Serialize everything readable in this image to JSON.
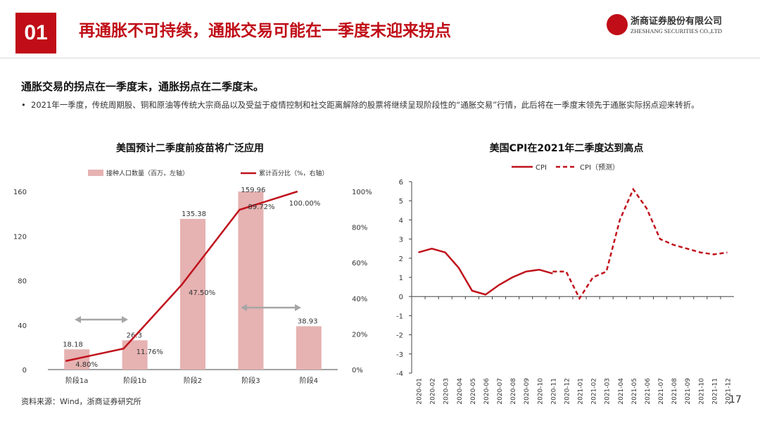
{
  "header": {
    "number": "01",
    "title": "再通胀不可持续，通胀交易可能在一季度末迎来拐点",
    "logo_cn": "浙商证券股份有限公司",
    "logo_en": "ZHESHANG SECURITIES CO.,LTD"
  },
  "subheading": "通胀交易的拐点在一季度末，通胀拐点在二季度末。",
  "bullet": {
    "marker": "•",
    "text": "2021年一季度，传统周期股、铜和原油等传统大宗商品以及受益于疫情控制和社交距离解除的股票将继续呈现阶段性的“通胀交易”行情，此后将在一季度末领先于通胀实际拐点迎来转折。"
  },
  "footer": {
    "source": "资料来源：Wind，浙商证券研究所",
    "page": "17"
  },
  "colors": {
    "accent": "#c00d17",
    "bar": "#e6b2b2",
    "line": "#c0121c",
    "arrow": "#a6a6a6"
  },
  "chart_data": [
    {
      "type": "bar",
      "title": "美国预计二季度前疫苗将广泛应用",
      "categories": [
        "阶段1a",
        "阶段1b",
        "阶段2",
        "阶段3",
        "阶段4"
      ],
      "series": [
        {
          "name": "接种人口数量（百万，左轴）",
          "type": "bar",
          "axis": "left",
          "values": [
            18.18,
            26.3,
            135.38,
            159.96,
            38.93
          ],
          "labels": [
            "18.18",
            "26.3",
            "135.38",
            "159.96",
            "38.93"
          ]
        },
        {
          "name": "累计百分比（%，右轴）",
          "type": "line",
          "axis": "right",
          "values": [
            4.8,
            11.76,
            47.5,
            89.72,
            100.0
          ],
          "labels": [
            "4.80%",
            "11.76%",
            "47.50%",
            "89.72%",
            "100.00%"
          ]
        }
      ],
      "ylim_left": [
        0,
        160
      ],
      "yticks_left": [
        "0",
        "40",
        "80",
        "120",
        "160"
      ],
      "ylim_right": [
        0,
        100
      ],
      "yticks_right": [
        "0%",
        "20%",
        "40%",
        "60%",
        "80%",
        "100%"
      ],
      "annotations": [
        "double-arrow over 阶段1a–阶段1b",
        "double-arrow over 阶段3–阶段4"
      ]
    },
    {
      "type": "line",
      "title": "美国CPI在2021年二季度达到高点",
      "x": [
        "2020-01",
        "2020-02",
        "2020-03",
        "2020-04",
        "2020-05",
        "2020-06",
        "2020-07",
        "2020-08",
        "2020-09",
        "2020-10",
        "2020-11",
        "2020-12",
        "2021-01",
        "2021-02",
        "2021-03",
        "2021-04",
        "2021-05",
        "2021-06",
        "2021-07",
        "2021-08",
        "2021-09",
        "2021-10",
        "2021-11",
        "2021-12"
      ],
      "series": [
        {
          "name": "CPI",
          "style": "solid",
          "values": [
            2.3,
            2.5,
            2.3,
            1.5,
            0.3,
            0.1,
            0.6,
            1.0,
            1.3,
            1.4,
            1.2,
            null,
            null,
            null,
            null,
            null,
            null,
            null,
            null,
            null,
            null,
            null,
            null,
            null
          ]
        },
        {
          "name": "CPI（预测）",
          "style": "dashed",
          "values": [
            null,
            null,
            null,
            null,
            null,
            null,
            null,
            null,
            null,
            null,
            1.3,
            1.3,
            -0.1,
            1.0,
            1.3,
            4.0,
            5.6,
            4.6,
            3.0,
            2.7,
            2.5,
            2.3,
            2.2,
            2.3
          ]
        }
      ],
      "ylim": [
        -4,
        6
      ],
      "yticks": [
        "6",
        "5",
        "4",
        "3",
        "2",
        "1",
        "0",
        "-1",
        "-2",
        "-3",
        "-4"
      ]
    }
  ]
}
